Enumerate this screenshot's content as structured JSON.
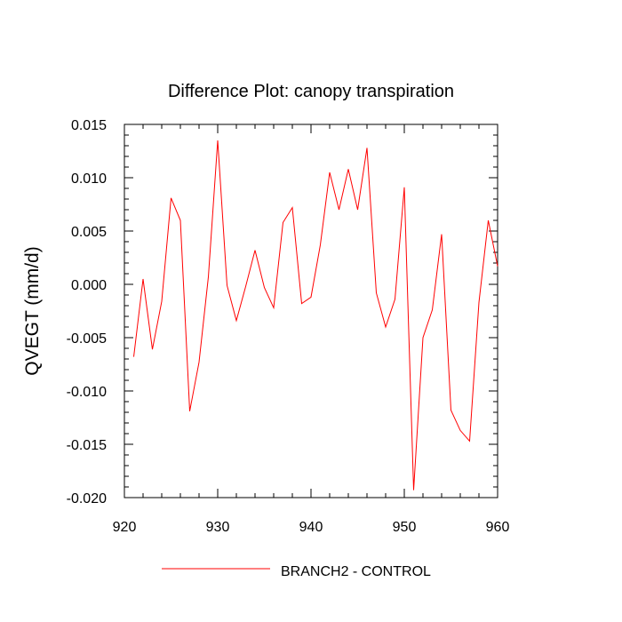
{
  "chart_data": {
    "type": "line",
    "title": "Difference Plot: canopy transpiration",
    "xlabel": "",
    "ylabel": "QVEGT  (mm/d)",
    "xlim": [
      920,
      960
    ],
    "ylim": [
      -0.02,
      0.015
    ],
    "x_ticks": [
      920,
      930,
      940,
      950,
      960
    ],
    "y_ticks": [
      -0.02,
      -0.015,
      -0.01,
      -0.005,
      0.0,
      0.005,
      0.01,
      0.015
    ],
    "x_tick_labels": [
      "920",
      "930",
      "940",
      "950",
      "960"
    ],
    "y_tick_labels": [
      "-0.020",
      "-0.015",
      "-0.010",
      "-0.005",
      "0.000",
      "0.005",
      "0.010",
      "0.015"
    ],
    "grid": false,
    "legend_position": "bottom-center",
    "series": [
      {
        "name": "BRANCH2 - CONTROL",
        "color": "#ff0000",
        "x": [
          921,
          922,
          923,
          924,
          925,
          926,
          927,
          928,
          929,
          930,
          931,
          932,
          933,
          934,
          935,
          936,
          937,
          938,
          939,
          940,
          941,
          942,
          943,
          944,
          945,
          946,
          947,
          948,
          949,
          950,
          951,
          952,
          953,
          954,
          955,
          956,
          957,
          958,
          959,
          960
        ],
        "values": [
          -0.0068,
          0.0005,
          -0.0061,
          -0.0016,
          0.0081,
          0.006,
          -0.0119,
          -0.0073,
          0.0007,
          0.0135,
          -0.0001,
          -0.0034,
          -0.0002,
          0.0032,
          -0.0003,
          -0.0022,
          0.0058,
          0.0072,
          -0.0018,
          -0.0012,
          0.0037,
          0.0105,
          0.007,
          0.0108,
          0.007,
          0.0128,
          -0.0008,
          -0.004,
          -0.0014,
          0.0091,
          -0.0193,
          -0.005,
          -0.0024,
          0.0047,
          -0.0118,
          -0.0137,
          -0.0147,
          -0.0017,
          0.006,
          0.0017
        ]
      }
    ]
  }
}
